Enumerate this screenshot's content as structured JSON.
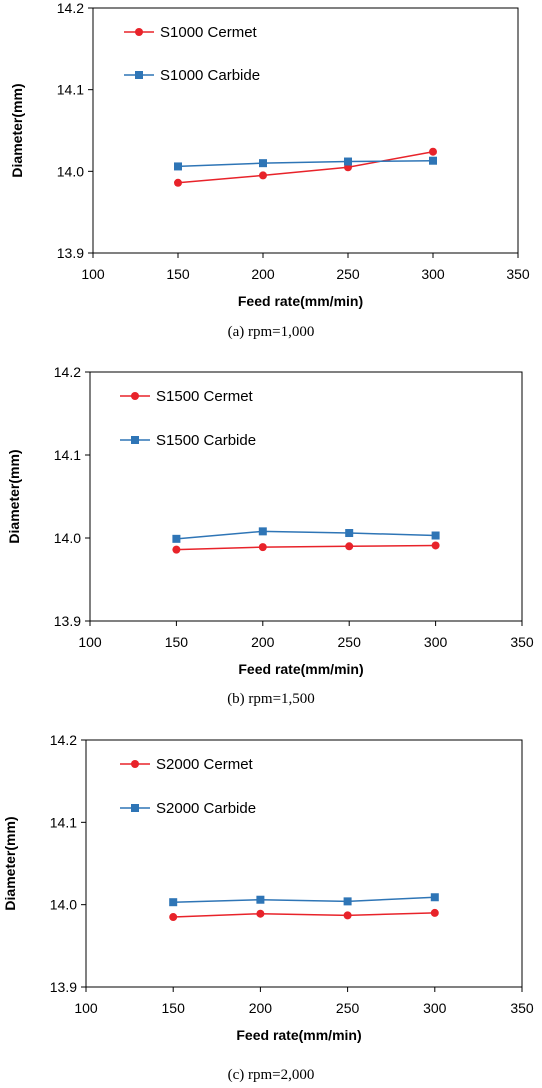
{
  "chart_data": [
    {
      "type": "line",
      "caption": "(a) rpm=1,000",
      "xlabel": "Feed rate(mm/min)",
      "ylabel": "Diameter(mm)",
      "xlim": [
        100,
        350
      ],
      "ylim": [
        13.9,
        14.2
      ],
      "xticks": [
        "100",
        "150",
        "200",
        "250",
        "300",
        "350"
      ],
      "yticks": [
        "13.9",
        "14.0",
        "14.1",
        "14.2"
      ],
      "grid": false,
      "legend": "top-left",
      "x": [
        150,
        200,
        250,
        300
      ],
      "series": [
        {
          "name": "S1000 Cermet",
          "values": [
            13.986,
            13.995,
            14.005,
            14.024
          ],
          "color": "#e8232a",
          "marker": "circle"
        },
        {
          "name": "S1000 Carbide",
          "values": [
            14.006,
            14.01,
            14.012,
            14.013
          ],
          "color": "#2e75b6",
          "marker": "square"
        }
      ]
    },
    {
      "type": "line",
      "caption": "(b) rpm=1,500",
      "xlabel": "Feed rate(mm/min)",
      "ylabel": "Diameter(mm)",
      "xlim": [
        100,
        350
      ],
      "ylim": [
        13.9,
        14.2
      ],
      "xticks": [
        "100",
        "150",
        "200",
        "250",
        "300",
        "350"
      ],
      "yticks": [
        "13.9",
        "14.0",
        "14.1",
        "14.2"
      ],
      "grid": false,
      "legend": "top-left",
      "x": [
        150,
        200,
        250,
        300
      ],
      "series": [
        {
          "name": "S1500 Cermet",
          "values": [
            13.986,
            13.989,
            13.99,
            13.991
          ],
          "color": "#e8232a",
          "marker": "circle"
        },
        {
          "name": "S1500 Carbide",
          "values": [
            13.999,
            14.008,
            14.006,
            14.003
          ],
          "color": "#2e75b6",
          "marker": "square"
        }
      ]
    },
    {
      "type": "line",
      "caption": "(c) rpm=2,000",
      "xlabel": "Feed rate(mm/min)",
      "ylabel": "Diameter(mm)",
      "xlim": [
        100,
        350
      ],
      "ylim": [
        13.9,
        14.2
      ],
      "xticks": [
        "100",
        "150",
        "200",
        "250",
        "300",
        "350"
      ],
      "yticks": [
        "13.9",
        "14.0",
        "14.1",
        "14.2"
      ],
      "grid": false,
      "legend": "top-left",
      "x": [
        150,
        200,
        250,
        300
      ],
      "series": [
        {
          "name": "S2000 Cermet",
          "values": [
            13.985,
            13.989,
            13.987,
            13.99
          ],
          "color": "#e8232a",
          "marker": "circle"
        },
        {
          "name": "S2000 Carbide",
          "values": [
            14.003,
            14.006,
            14.004,
            14.009
          ],
          "color": "#2e75b6",
          "marker": "square"
        }
      ]
    }
  ]
}
